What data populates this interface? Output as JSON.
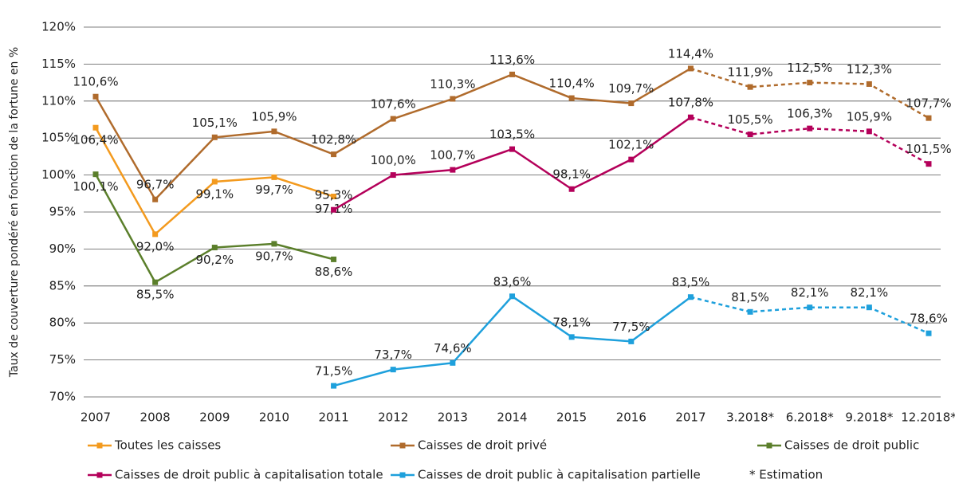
{
  "chart_data": {
    "type": "line",
    "y_label": "Taux de couverture pondéré en fonction de la fortune en %",
    "categories": [
      "2007",
      "2008",
      "2009",
      "2010",
      "2011",
      "2012",
      "2013",
      "2014",
      "2015",
      "2016",
      "2017",
      "3.2018*",
      "6.2018*",
      "9.2018*",
      "12.2018*"
    ],
    "estimate_from": "2017",
    "note": "* Estimation",
    "series": [
      {
        "name": "Toutes les caisses",
        "color": "#f39a1e",
        "values": [
          106.4,
          92.0,
          99.1,
          99.7,
          97.1,
          null,
          null,
          null,
          null,
          null,
          null,
          null,
          null,
          null,
          null
        ],
        "value_labels": [
          "106,4%",
          "92,0%",
          "99,1%",
          "99,7%",
          "97,1%",
          null,
          null,
          null,
          null,
          null,
          null,
          null,
          null,
          null,
          null
        ]
      },
      {
        "name": "Caisses de droit privé",
        "color": "#b06b2c",
        "values": [
          110.6,
          96.7,
          105.1,
          105.9,
          102.8,
          107.6,
          110.3,
          113.6,
          110.4,
          109.7,
          114.4,
          111.9,
          112.5,
          112.3,
          107.7
        ],
        "value_labels": [
          "110,6%",
          "96,7%",
          "105,1%",
          "105,9%",
          "102,8%",
          "107,6%",
          "110,3%",
          "113,6%",
          "110,4%",
          "109,7%",
          "114,4%",
          "111,9%",
          "112,5%",
          "112,3%",
          "107,7%"
        ]
      },
      {
        "name": "Caisses de droit public",
        "color": "#5b7f2b",
        "values": [
          100.1,
          85.5,
          90.2,
          90.7,
          88.6,
          null,
          null,
          null,
          null,
          null,
          null,
          null,
          null,
          null,
          null
        ],
        "value_labels": [
          "100,1%",
          "85,5%",
          "90,2%",
          "90,7%",
          "88,6%",
          null,
          null,
          null,
          null,
          null,
          null,
          null,
          null,
          null,
          null
        ]
      },
      {
        "name": "Caisses de droit public à capitalisation totale",
        "color": "#b4005a",
        "values": [
          null,
          null,
          null,
          null,
          95.3,
          100.0,
          100.7,
          103.5,
          98.1,
          102.1,
          107.8,
          105.5,
          106.3,
          105.9,
          101.5
        ],
        "value_labels": [
          null,
          null,
          null,
          null,
          "95,3%",
          "100,0%",
          "100,7%",
          "103,5%",
          "98,1%",
          "102,1%",
          "107,8%",
          "105,5%",
          "106,3%",
          "105,9%",
          "101,5%"
        ]
      },
      {
        "name": "Caisses de droit public à capitalisation partielle",
        "color": "#1ea0dc",
        "values": [
          null,
          null,
          null,
          null,
          71.5,
          73.7,
          74.6,
          83.6,
          78.1,
          77.5,
          83.5,
          81.5,
          82.1,
          82.1,
          78.6
        ],
        "value_labels": [
          null,
          null,
          null,
          null,
          "71,5%",
          "73,7%",
          "74,6%",
          "83,6%",
          "78,1%",
          "77,5%",
          "83,5%",
          "81,5%",
          "82,1%",
          "82,1%",
          "78,6%"
        ]
      }
    ],
    "ylim": [
      70,
      120
    ],
    "yticks": [
      {
        "value": 70,
        "label": "70%"
      },
      {
        "value": 75,
        "label": "75%"
      },
      {
        "value": 80,
        "label": "80%"
      },
      {
        "value": 85,
        "label": "85%"
      },
      {
        "value": 90,
        "label": "90%"
      },
      {
        "value": 95,
        "label": "95%"
      },
      {
        "value": 100,
        "label": "100%"
      },
      {
        "value": 105,
        "label": "105%"
      },
      {
        "value": 110,
        "label": "110%"
      },
      {
        "value": 115,
        "label": "115%"
      },
      {
        "value": 120,
        "label": "120%"
      }
    ],
    "grid": true
  }
}
